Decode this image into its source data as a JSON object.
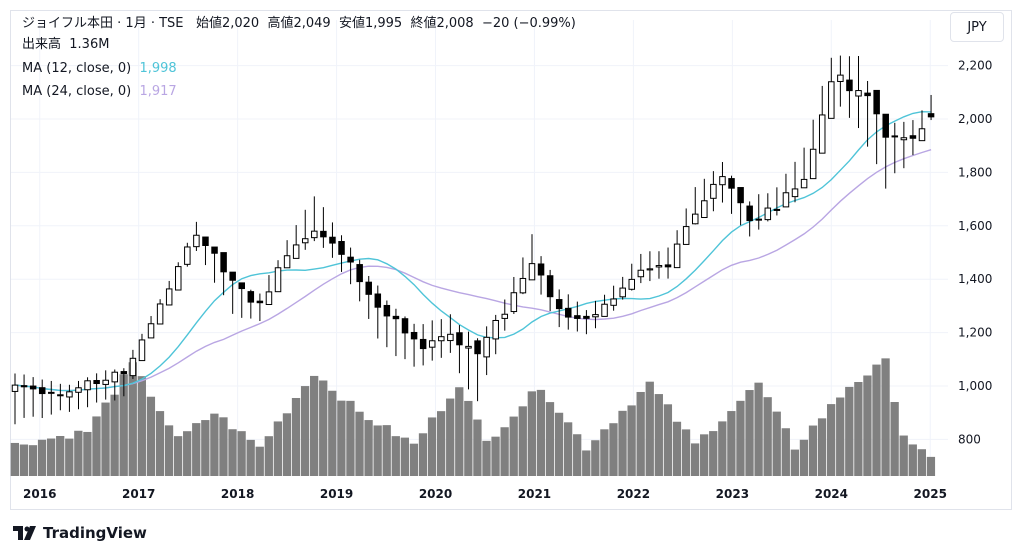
{
  "legend": {
    "name": "ジョイフル本田",
    "interval": "1月",
    "exchange": "TSE",
    "open_label": "始値",
    "open": "2,020",
    "high_label": "高値",
    "high": "2,049",
    "low_label": "安値",
    "low": "1,995",
    "close_label": "終値",
    "close": "2,008",
    "change": "−20 (−0.99%)",
    "volume_label": "出来高",
    "volume": "1.36M",
    "ma1_label": "MA (12, close, 0)",
    "ma1_value": "1,998",
    "ma2_label": "MA (24, close, 0)",
    "ma2_value": "1,917"
  },
  "currency": "JPY",
  "branding": "TradingView",
  "colors": {
    "up_body": "#ffffff",
    "down_body": "#000000",
    "candle_outline": "#000000",
    "ma1": "#4fc4d8",
    "ma2": "#b9a6e3",
    "volume": "#808080",
    "grid": "#f0f3fa"
  },
  "chart_data": {
    "type": "candlestick",
    "price_axis": {
      "ticks": [
        800,
        1000,
        1200,
        1400,
        1600,
        1800,
        2000,
        2200
      ],
      "labels": [
        "800",
        "1,000",
        "1,200",
        "1,400",
        "1,600",
        "1,800",
        "2,000",
        "2,200"
      ]
    },
    "time_axis": {
      "labels": [
        "2016",
        "2017",
        "2018",
        "2019",
        "2020",
        "2021",
        "2022",
        "2023",
        "2024",
        "2025"
      ],
      "start_year": 2015.75
    },
    "ma_periods": [
      12,
      24
    ],
    "anchors": [
      [
        0,
        1000,
        1050,
        850
      ],
      [
        6,
        980,
        1020,
        900
      ],
      [
        12,
        1050,
        1080,
        950
      ],
      [
        16,
        1300,
        1330,
        1250
      ],
      [
        20,
        1580,
        1620,
        1500
      ],
      [
        24,
        1380,
        1420,
        1260
      ],
      [
        27,
        1300,
        1350,
        1230
      ],
      [
        30,
        1500,
        1550,
        1450
      ],
      [
        33,
        1600,
        1720,
        1540
      ],
      [
        37,
        1450,
        1520,
        1380
      ],
      [
        40,
        1300,
        1380,
        1150
      ],
      [
        44,
        1150,
        1250,
        1050
      ],
      [
        48,
        1200,
        1280,
        1100
      ],
      [
        51,
        1120,
        1180,
        930
      ],
      [
        54,
        1280,
        1330,
        1200
      ],
      [
        57,
        1480,
        1570,
        1400
      ],
      [
        60,
        1280,
        1380,
        1220
      ],
      [
        63,
        1240,
        1290,
        1180
      ],
      [
        66,
        1330,
        1380,
        1280
      ],
      [
        69,
        1430,
        1500,
        1380
      ],
      [
        72,
        1450,
        1520,
        1400
      ],
      [
        75,
        1650,
        1750,
        1600
      ],
      [
        78,
        1800,
        1850,
        1680
      ],
      [
        81,
        1620,
        1700,
        1560
      ],
      [
        84,
        1680,
        1760,
        1620
      ],
      [
        87,
        1780,
        1900,
        1720
      ],
      [
        90,
        2150,
        2240,
        2080
      ],
      [
        93,
        2120,
        2240,
        1950
      ],
      [
        96,
        1950,
        2000,
        1730
      ],
      [
        99,
        1920,
        2000,
        1850
      ],
      [
        101,
        2010,
        2090,
        1990
      ]
    ],
    "volume_anchors": [
      [
        0,
        780
      ],
      [
        8,
        830
      ],
      [
        13,
        1080
      ],
      [
        18,
        800
      ],
      [
        22,
        900
      ],
      [
        27,
        770
      ],
      [
        33,
        1050
      ],
      [
        38,
        900
      ],
      [
        44,
        780
      ],
      [
        49,
        1010
      ],
      [
        52,
        790
      ],
      [
        58,
        1000
      ],
      [
        63,
        770
      ],
      [
        70,
        1010
      ],
      [
        75,
        780
      ],
      [
        82,
        1010
      ],
      [
        86,
        770
      ],
      [
        92,
        1000
      ],
      [
        96,
        1090
      ],
      [
        98,
        820
      ],
      [
        101,
        720
      ]
    ],
    "title": "",
    "xlabel": "",
    "ylabel": "",
    "grid": true
  }
}
